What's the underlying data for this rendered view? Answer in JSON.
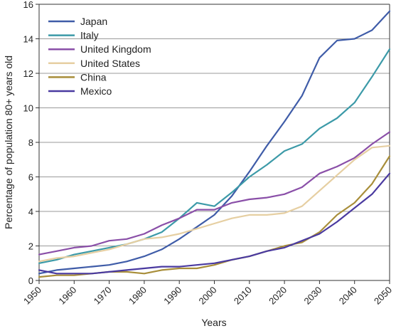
{
  "chart_data": {
    "type": "line",
    "xlabel": "Years",
    "ylabel": "Percentage of population 80+ years old",
    "xlim": [
      1950,
      2050
    ],
    "ylim": [
      0,
      16
    ],
    "xticks": [
      1950,
      1960,
      1970,
      1980,
      1990,
      2000,
      2010,
      2020,
      2030,
      2040,
      2050
    ],
    "yticks": [
      0,
      2,
      4,
      6,
      8,
      10,
      12,
      14,
      16
    ],
    "grid": "horizontal",
    "legend_position": "top-left",
    "x": [
      1950,
      1955,
      1960,
      1965,
      1970,
      1975,
      1980,
      1985,
      1990,
      1995,
      2000,
      2005,
      2010,
      2015,
      2020,
      2025,
      2030,
      2035,
      2040,
      2045,
      2050
    ],
    "series": [
      {
        "name": "Japan",
        "color": "#3f5ca8",
        "values": [
          0.4,
          0.6,
          0.7,
          0.8,
          0.9,
          1.1,
          1.4,
          1.8,
          2.4,
          3.1,
          3.8,
          4.9,
          6.3,
          7.8,
          9.2,
          10.7,
          12.9,
          13.9,
          14.0,
          14.5,
          15.6
        ]
      },
      {
        "name": "Italy",
        "color": "#3c9aa8",
        "values": [
          1.0,
          1.2,
          1.5,
          1.7,
          1.9,
          2.1,
          2.4,
          2.8,
          3.6,
          4.5,
          4.3,
          5.1,
          6.0,
          6.7,
          7.5,
          7.9,
          8.8,
          9.4,
          10.3,
          11.8,
          13.4
        ]
      },
      {
        "name": "United Kingdom",
        "color": "#8a4fa8",
        "values": [
          1.5,
          1.7,
          1.9,
          2.0,
          2.3,
          2.4,
          2.7,
          3.2,
          3.6,
          4.1,
          4.1,
          4.5,
          4.7,
          4.8,
          5.0,
          5.4,
          6.2,
          6.6,
          7.1,
          7.9,
          8.6
        ]
      },
      {
        "name": "United States",
        "color": "#e6cfa2",
        "values": [
          1.1,
          1.3,
          1.4,
          1.6,
          1.8,
          2.1,
          2.4,
          2.5,
          2.7,
          3.0,
          3.3,
          3.6,
          3.8,
          3.8,
          3.9,
          4.3,
          5.2,
          6.1,
          7.0,
          7.7,
          7.8
        ]
      },
      {
        "name": "China",
        "color": "#a88e3a",
        "values": [
          0.2,
          0.3,
          0.3,
          0.4,
          0.5,
          0.5,
          0.4,
          0.6,
          0.7,
          0.7,
          0.9,
          1.2,
          1.4,
          1.7,
          2.0,
          2.2,
          2.8,
          3.8,
          4.5,
          5.6,
          7.2
        ]
      },
      {
        "name": "Mexico",
        "color": "#4a3aa0",
        "values": [
          0.6,
          0.4,
          0.4,
          0.4,
          0.5,
          0.6,
          0.7,
          0.8,
          0.8,
          0.9,
          1.0,
          1.2,
          1.4,
          1.7,
          1.9,
          2.3,
          2.7,
          3.4,
          4.2,
          5.0,
          6.2
        ]
      }
    ]
  }
}
